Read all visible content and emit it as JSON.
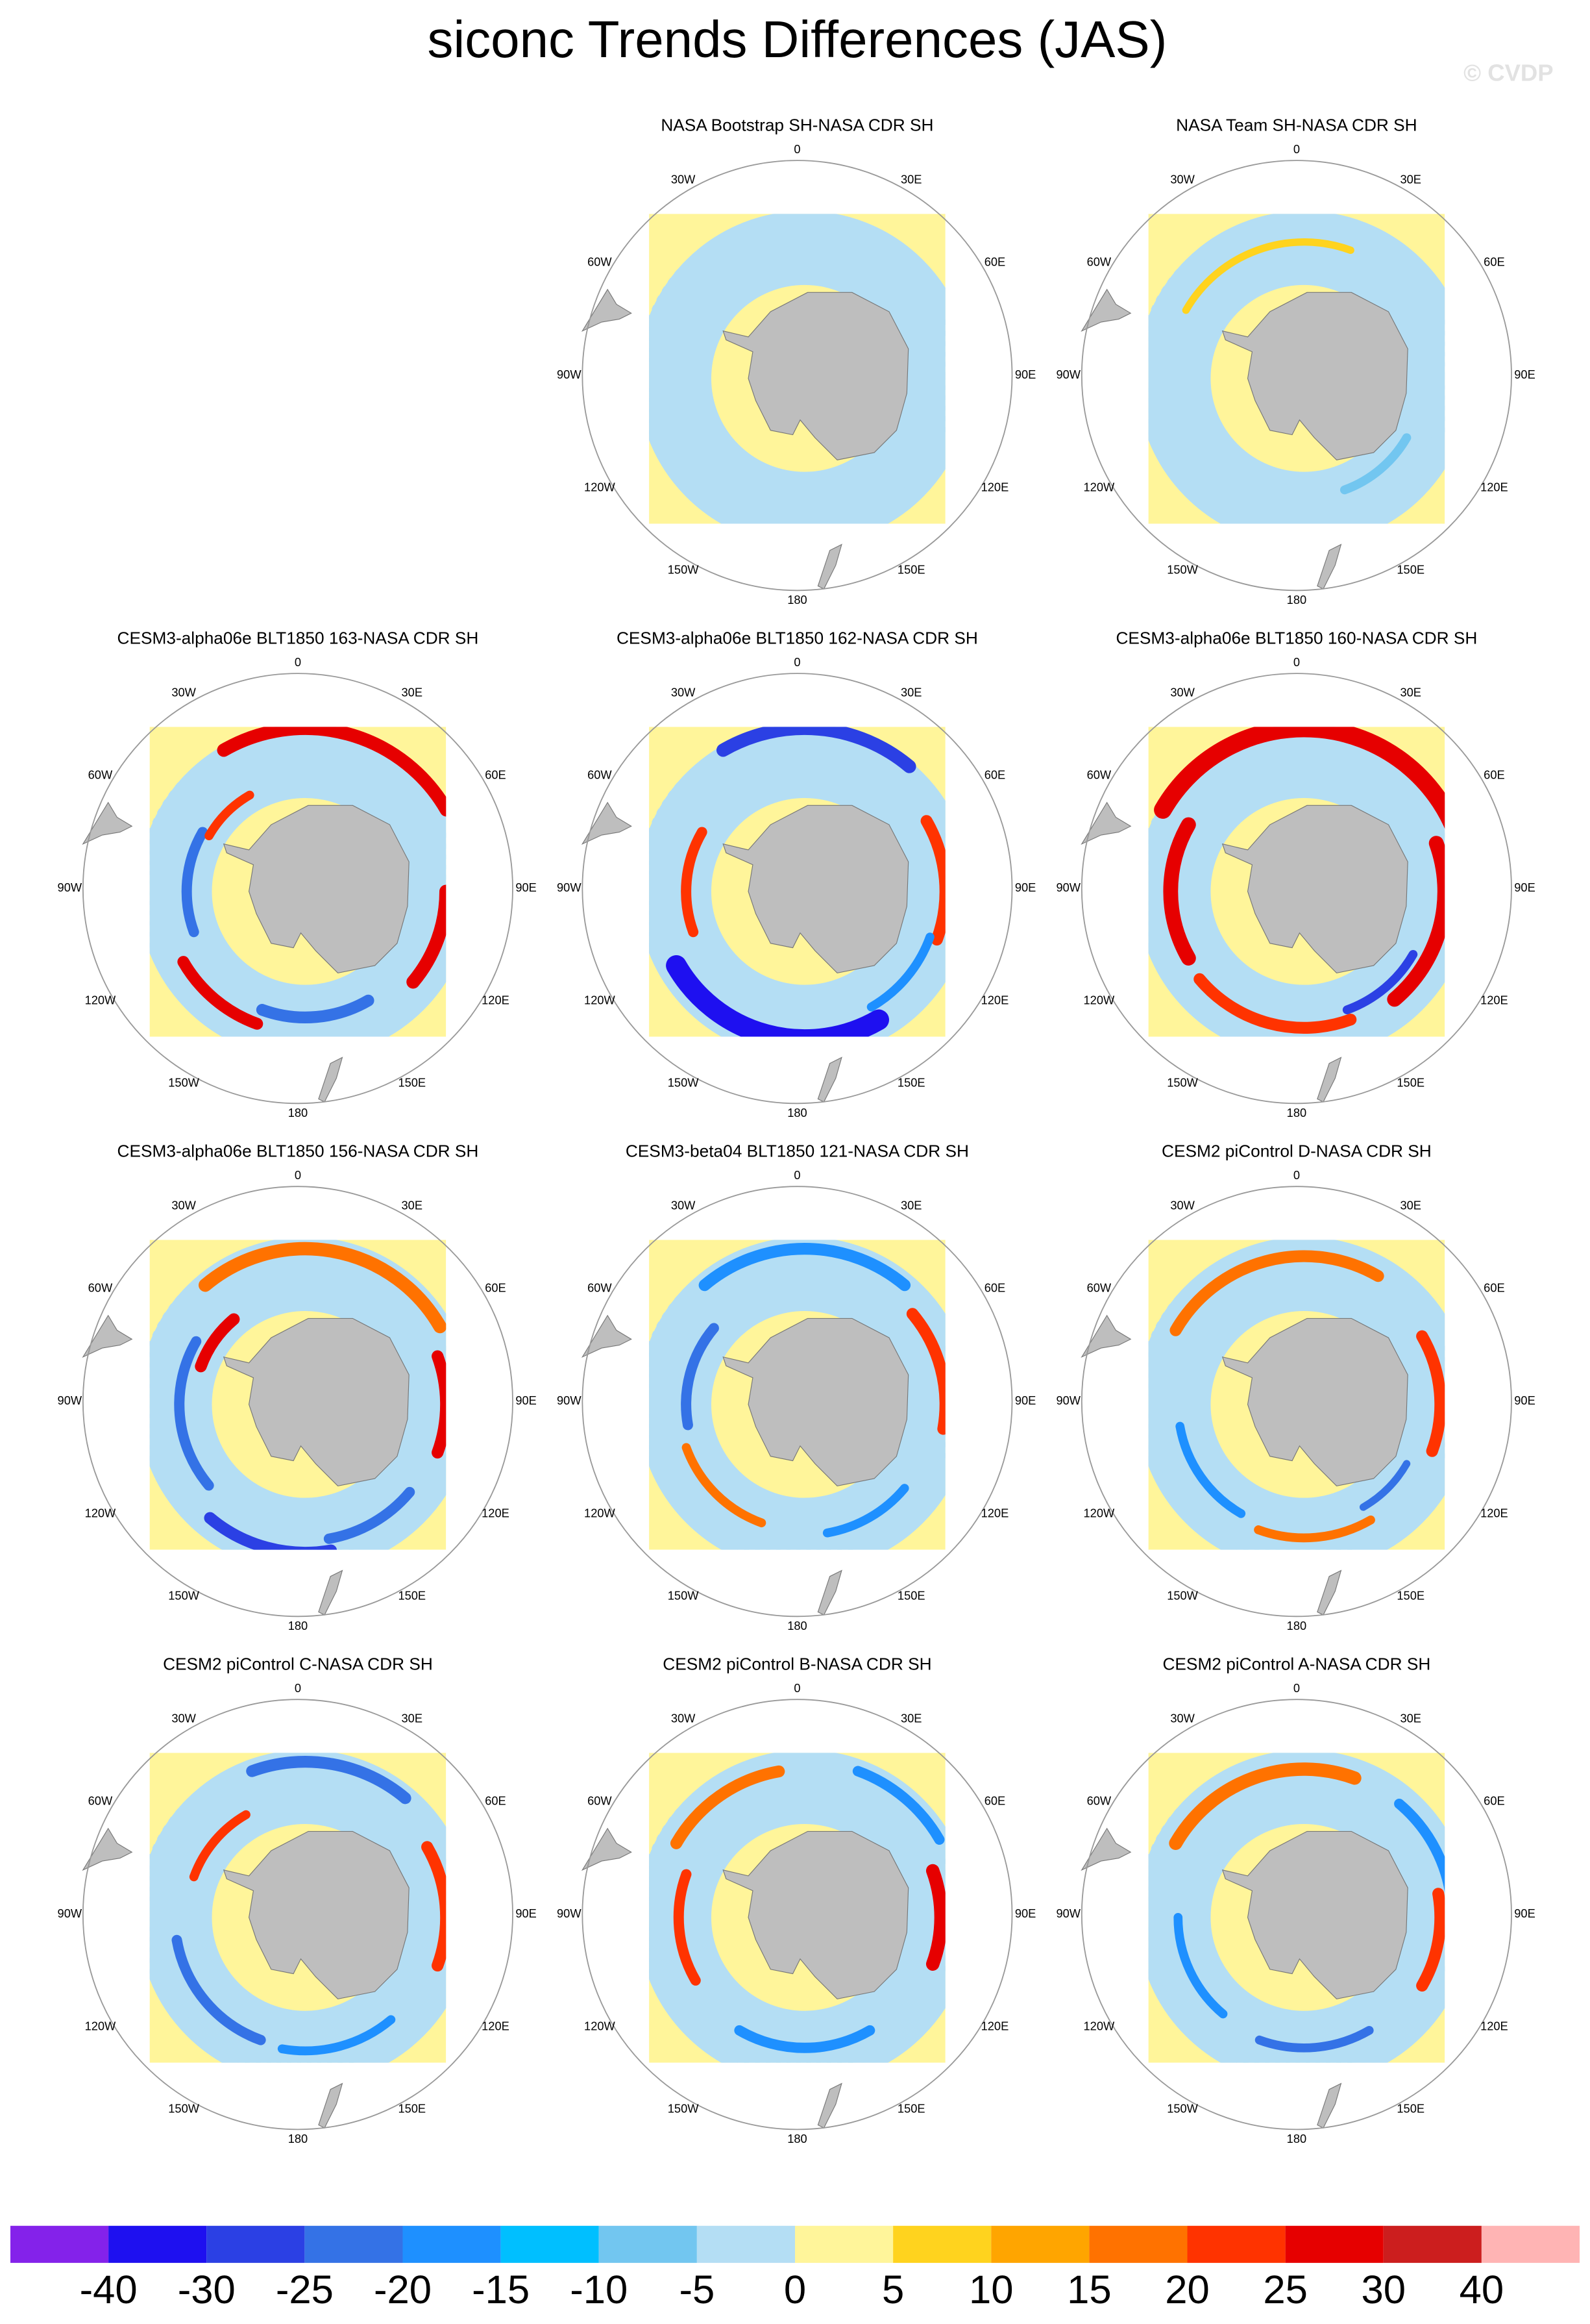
{
  "title": "siconc Trends Differences (JAS)",
  "watermark": "© CVDP",
  "panels": [
    {
      "title": "NASA Bootstrap SH-NASA CDR SH"
    },
    {
      "title": "NASA Team SH-NASA CDR SH"
    },
    {
      "title": "CESM3-alpha06e BLT1850 163-NASA CDR SH"
    },
    {
      "title": "CESM3-alpha06e BLT1850 162-NASA CDR SH"
    },
    {
      "title": "CESM3-alpha06e BLT1850 160-NASA CDR SH"
    },
    {
      "title": "CESM3-alpha06e BLT1850 156-NASA CDR SH"
    },
    {
      "title": "CESM3-beta04 BLT1850 121-NASA CDR SH"
    },
    {
      "title": "CESM2 piControl D-NASA CDR SH"
    },
    {
      "title": "CESM2 piControl C-NASA CDR SH"
    },
    {
      "title": "CESM2 piControl B-NASA CDR SH"
    },
    {
      "title": "CESM2 piControl A-NASA CDR SH"
    }
  ],
  "lon_labels": [
    "0",
    "30E",
    "60E",
    "90E",
    "120E",
    "150E",
    "180",
    "150W",
    "120W",
    "90W",
    "60W",
    "30W"
  ],
  "colorbar": {
    "colors": [
      "#8422ea",
      "#1e10f0",
      "#2b40e4",
      "#3472e6",
      "#1e90ff",
      "#00bfff",
      "#72c6f0",
      "#b4def4",
      "#fff59a",
      "#ffd31e",
      "#ffa500",
      "#ff7200",
      "#ff3300",
      "#e60000",
      "#cc1e1e",
      "#ffb4b4"
    ],
    "levels": [
      -40,
      -30,
      -25,
      -20,
      -15,
      -10,
      -5,
      0,
      5,
      10,
      15,
      20,
      25,
      30,
      40
    ]
  }
}
